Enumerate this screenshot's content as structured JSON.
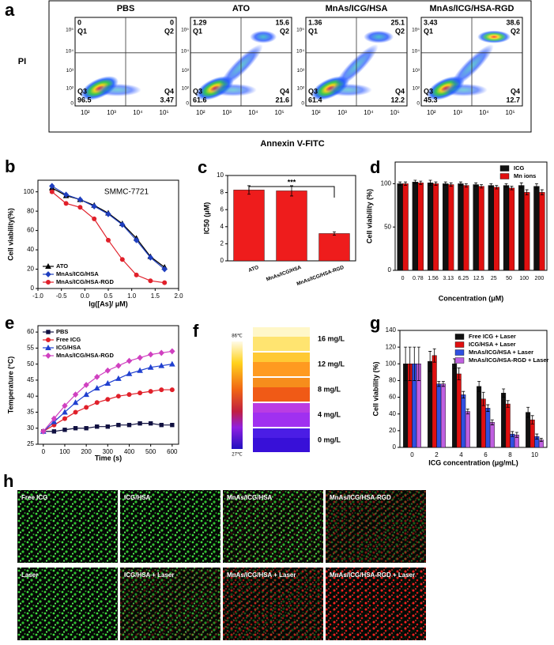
{
  "flow": {
    "panel": "a",
    "y_label": "PI",
    "x_label": "Annexin V-FITC",
    "quadrants": [
      "Q1",
      "Q2",
      "Q3",
      "Q4"
    ],
    "x_ticks": [
      "10²",
      "10³",
      "10⁴",
      "10⁵"
    ],
    "y_ticks": [
      "0",
      "10²",
      "10³",
      "10⁴",
      "10⁵"
    ],
    "plots": [
      {
        "title": "PBS",
        "q1": 0,
        "q2": 0,
        "q3": 96.5,
        "q4": 3.47
      },
      {
        "title": "ATO",
        "q1": 1.29,
        "q2": 15.6,
        "q3": 61.6,
        "q4": 21.6
      },
      {
        "title": "MnAs/ICG/HSA",
        "q1": 1.36,
        "q2": 25.1,
        "q3": 61.4,
        "q4": 12.2
      },
      {
        "title": "MnAs/ICG/HSA-RGD",
        "q1": 3.43,
        "q2": 38.6,
        "q3": 45.3,
        "q4": 12.7
      }
    ]
  },
  "chart_data": [
    {
      "type": "line",
      "panel": "b",
      "annotation": "SMMC-7721",
      "x_label": "lg([As]/ μM)",
      "y_label": "Cell viability(%)",
      "x": [
        -0.7,
        -0.4,
        -0.1,
        0.2,
        0.5,
        0.8,
        1.1,
        1.4,
        1.7
      ],
      "xlim": [
        -1,
        2
      ],
      "xticks": [
        {
          "value": -1,
          "label": "-1.0"
        },
        {
          "value": -0.5,
          "label": "-0.5"
        },
        {
          "value": 0,
          "label": "0.0"
        },
        {
          "value": 0.5,
          "label": "0.5"
        },
        {
          "value": 1,
          "label": "1.0"
        },
        {
          "value": 1.5,
          "label": "1.5"
        },
        {
          "value": 2,
          "label": "2.0"
        }
      ],
      "ylim": [
        0,
        112
      ],
      "yticks": [
        0,
        20,
        40,
        60,
        80,
        100
      ],
      "legend": "lower left",
      "series": [
        {
          "name": "ATO",
          "color": "#000000",
          "marker": "triangle",
          "values": [
            104,
            96,
            92,
            86,
            78,
            67,
            52,
            33,
            22
          ]
        },
        {
          "name": "MnAs/ICG/HSA",
          "color": "#1f3fbf",
          "marker": "diamond",
          "values": [
            106,
            97,
            92,
            85,
            77,
            66,
            50,
            32,
            20
          ]
        },
        {
          "name": "MnAs/ICG/HSA-RGD",
          "color": "#e0202a",
          "marker": "circle",
          "values": [
            100,
            88,
            84,
            72,
            50,
            30,
            14,
            8,
            6
          ]
        }
      ]
    },
    {
      "type": "bar",
      "panel": "c",
      "annotation": "***",
      "y_label": "IC50 (μM)",
      "categories": [
        "ATO",
        "MnAs/ICG/HSA",
        "MnAs/ICG/HSA-RGD"
      ],
      "ylim": [
        0,
        10
      ],
      "yticks": [
        0,
        2,
        4,
        6,
        8,
        10
      ],
      "series": [
        {
          "color": "#ee1c1c",
          "values": [
            8.3,
            8.2,
            3.2
          ],
          "errors": [
            0.5,
            0.6,
            0.2
          ]
        }
      ]
    },
    {
      "type": "bar",
      "panel": "d",
      "x_label": "Concentration (μM)",
      "y_label": "Cell viability (%)",
      "categories": [
        "0",
        "0.78",
        "1.56",
        "3.13",
        "6.25",
        "12.5",
        "25",
        "50",
        "100",
        "200"
      ],
      "ylim": [
        0,
        125
      ],
      "yticks": [
        0,
        50,
        100
      ],
      "legend": "upper right",
      "series": [
        {
          "name": "ICG",
          "color": "#111111",
          "values": [
            100,
            102,
            101,
            100,
            100,
            99,
            98,
            98,
            98,
            97
          ],
          "errors": [
            2,
            2,
            3,
            2,
            2,
            2,
            2,
            2,
            3,
            3
          ]
        },
        {
          "name": "Mn ions",
          "color": "#e01010",
          "values": [
            100,
            101,
            100,
            99,
            98,
            97,
            96,
            95,
            90,
            90
          ],
          "errors": [
            2,
            2,
            2,
            2,
            2,
            2,
            2,
            2,
            3,
            3
          ]
        }
      ]
    },
    {
      "type": "line",
      "panel": "e",
      "x_label": "Time (s)",
      "y_label": "Temperature (°C)",
      "x": [
        0,
        50,
        100,
        150,
        200,
        250,
        300,
        350,
        400,
        450,
        500,
        550,
        600
      ],
      "xlim": [
        -25,
        630
      ],
      "xticks": [
        0,
        100,
        200,
        300,
        400,
        500,
        600
      ],
      "ylim": [
        25,
        62
      ],
      "yticks": [
        25,
        30,
        35,
        40,
        45,
        50,
        55,
        60
      ],
      "legend": "upper left",
      "series": [
        {
          "name": "PBS",
          "color": "#101040",
          "marker": "square",
          "values": [
            29,
            29,
            29.5,
            30,
            30,
            30.5,
            30.5,
            31,
            31,
            31.5,
            31.5,
            31,
            31
          ]
        },
        {
          "name": "Free ICG",
          "color": "#e0202a",
          "marker": "circle",
          "values": [
            29,
            31,
            33,
            35,
            36.5,
            38,
            39,
            40,
            40.5,
            41,
            41.5,
            42,
            42
          ]
        },
        {
          "name": "ICG/HSA",
          "color": "#2040d0",
          "marker": "triangle",
          "values": [
            29,
            32,
            35,
            38,
            40.5,
            42.5,
            44,
            45.5,
            47,
            48,
            49,
            49.5,
            50
          ]
        },
        {
          "name": "MnAs/ICG/HSA-RGD",
          "color": "#d040c0",
          "marker": "diamond",
          "values": [
            29,
            33,
            37,
            40.5,
            43.5,
            46,
            48,
            49.5,
            51,
            52,
            53,
            53.5,
            54
          ]
        }
      ]
    },
    {
      "type": "bar",
      "panel": "g",
      "x_label": "ICG concentration (μg/mL)",
      "y_label": "Cell viability (%)",
      "categories": [
        "0",
        "2",
        "4",
        "6",
        "8",
        "10"
      ],
      "ylim": [
        0,
        140
      ],
      "yticks": [
        0,
        20,
        40,
        60,
        80,
        100,
        120,
        140
      ],
      "legend": "upper right",
      "series": [
        {
          "name": "Free ICG + Laser",
          "color": "#111111",
          "values": [
            100,
            103,
            100,
            73,
            65,
            42
          ],
          "errors": [
            20,
            12,
            6,
            6,
            5,
            6
          ]
        },
        {
          "name": "ICG/HSA + Laser",
          "color": "#e01010",
          "values": [
            100,
            110,
            88,
            58,
            52,
            33
          ],
          "errors": [
            20,
            8,
            7,
            8,
            4,
            5
          ]
        },
        {
          "name": "MnAs/ICG/HSA + Laser",
          "color": "#3050e0",
          "values": [
            100,
            76,
            63,
            47,
            16,
            13
          ],
          "errors": [
            20,
            3,
            4,
            4,
            3,
            3
          ]
        },
        {
          "name": "MnAs/ICG/HSA-RGD + Laser",
          "color": "#c060e0",
          "values": [
            100,
            76,
            43,
            30,
            15,
            9
          ],
          "errors": [
            20,
            3,
            3,
            3,
            3,
            2
          ]
        }
      ]
    }
  ],
  "thermal": {
    "panel": "f",
    "scale_max": "86℃",
    "scale_min": "27℃",
    "labels": [
      "16 mg/L",
      "12 mg/L",
      "8 mg/L",
      "4 mg/L",
      "0 mg/L"
    ]
  },
  "images": {
    "panel": "h",
    "labels": [
      "Free ICG",
      "ICG/HSA",
      "MnAs/ICG/HSA",
      "MnAs/ICG/HSA-RGD",
      "Laser",
      "ICG/HSA + Laser",
      "MnAs/ICG/HSA + Laser",
      "MnAs/ICG/HSA-RGD + Laser"
    ]
  }
}
